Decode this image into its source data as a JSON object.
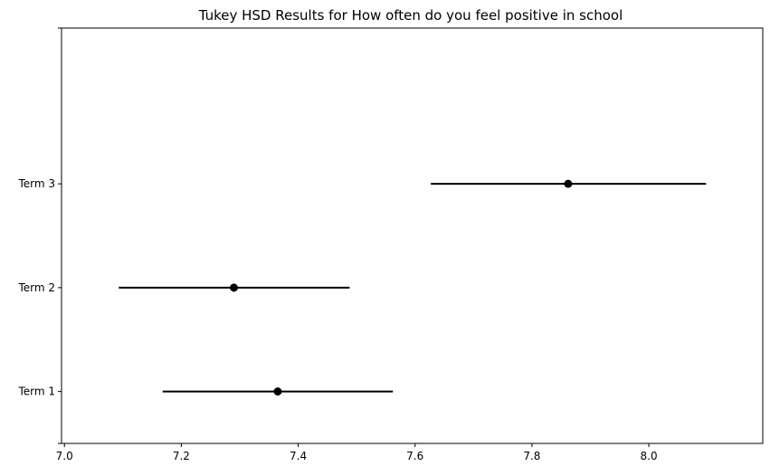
{
  "chart_data": {
    "type": "scatter",
    "title": "Tukey HSD Results for How often do you feel positive in school",
    "xlabel": "",
    "ylabel": "",
    "xlim": [
      6.995,
      8.195
    ],
    "ylim": [
      -0.5,
      3.5
    ],
    "x_ticks": [
      {
        "value": 7.0,
        "label": "7.0"
      },
      {
        "value": 7.2,
        "label": "7.2"
      },
      {
        "value": 7.4,
        "label": "7.4"
      },
      {
        "value": 7.6,
        "label": "7.6"
      },
      {
        "value": 7.8,
        "label": "7.8"
      },
      {
        "value": 8.0,
        "label": "8.0"
      }
    ],
    "categories": [
      "Term 1",
      "Term 2",
      "Term 3"
    ],
    "points": [
      {
        "group": "Term 1",
        "mean": 7.365,
        "lower": 7.168,
        "upper": 7.562
      },
      {
        "group": "Term 2",
        "mean": 7.29,
        "lower": 7.093,
        "upper": 7.488
      },
      {
        "group": "Term 3",
        "mean": 7.862,
        "lower": 7.627,
        "upper": 8.098
      }
    ],
    "grid": false,
    "colors": {
      "marker": "#000000",
      "line": "#000000",
      "axes": "#000000"
    }
  }
}
